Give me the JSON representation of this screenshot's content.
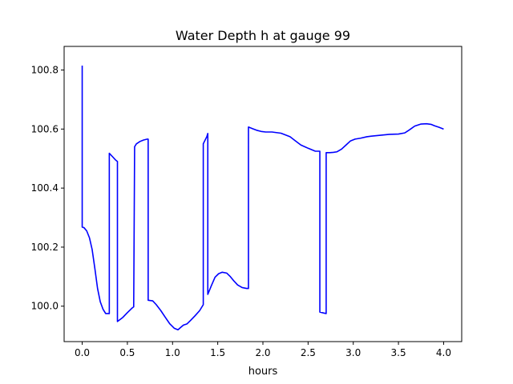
{
  "chart_data": {
    "type": "line",
    "title": "Water Depth h at gauge 99",
    "xlabel": "hours",
    "ylabel": "",
    "xlim": [
      -0.2,
      4.2
    ],
    "ylim": [
      99.88,
      100.88
    ],
    "xticks": [
      0.0,
      0.5,
      1.0,
      1.5,
      2.0,
      2.5,
      3.0,
      3.5,
      4.0
    ],
    "xtick_labels": [
      "0.0",
      "0.5",
      "1.0",
      "1.5",
      "2.0",
      "2.5",
      "3.0",
      "3.5",
      "4.0"
    ],
    "yticks": [
      100.0,
      100.2,
      100.4,
      100.6,
      100.8
    ],
    "ytick_labels": [
      "100.0",
      "100.2",
      "100.4",
      "100.6",
      "100.8"
    ],
    "grid": false,
    "line_color": "#0000ff",
    "series": [
      {
        "x": [
          0.0,
          0.0,
          0.02,
          0.05,
          0.08,
          0.11,
          0.14,
          0.17,
          0.2,
          0.23,
          0.26,
          0.3,
          0.3,
          0.34,
          0.37,
          0.39,
          0.39,
          0.45,
          0.5,
          0.55,
          0.57,
          0.58,
          0.6,
          0.64,
          0.68,
          0.72,
          0.73,
          0.73,
          0.78,
          0.82,
          0.87,
          0.92,
          0.97,
          1.02,
          1.06,
          1.09,
          1.12,
          1.16,
          1.2,
          1.25,
          1.3,
          1.34,
          1.34,
          1.38,
          1.39,
          1.39,
          1.43,
          1.47,
          1.51,
          1.55,
          1.6,
          1.64,
          1.68,
          1.72,
          1.77,
          1.82,
          1.84,
          1.84,
          1.88,
          1.93,
          1.98,
          2.03,
          2.1,
          2.2,
          2.3,
          2.36,
          2.42,
          2.5,
          2.58,
          2.63,
          2.63,
          2.67,
          2.7,
          2.7,
          2.74,
          2.78,
          2.82,
          2.87,
          2.92,
          2.97,
          3.02,
          3.08,
          3.15,
          3.2,
          3.3,
          3.4,
          3.5,
          3.57,
          3.62,
          3.68,
          3.75,
          3.81,
          3.86,
          3.9,
          3.95,
          4.0
        ],
        "y": [
          100.815,
          100.268,
          100.266,
          100.255,
          100.232,
          100.192,
          100.128,
          100.06,
          100.015,
          99.99,
          99.975,
          99.975,
          100.518,
          100.505,
          100.495,
          100.49,
          99.948,
          99.962,
          99.978,
          99.993,
          99.998,
          100.54,
          100.55,
          100.558,
          100.563,
          100.566,
          100.566,
          100.02,
          100.018,
          100.005,
          99.985,
          99.962,
          99.94,
          99.925,
          99.92,
          99.928,
          99.936,
          99.94,
          99.952,
          99.968,
          99.985,
          100.005,
          100.55,
          100.575,
          100.585,
          100.04,
          100.07,
          100.098,
          100.11,
          100.115,
          100.112,
          100.1,
          100.085,
          100.072,
          100.063,
          100.06,
          100.06,
          100.607,
          100.602,
          100.596,
          100.592,
          100.59,
          100.59,
          100.586,
          100.574,
          100.56,
          100.546,
          100.535,
          100.525,
          100.525,
          99.98,
          99.977,
          99.975,
          100.52,
          100.52,
          100.521,
          100.523,
          100.532,
          100.546,
          100.56,
          100.566,
          100.569,
          100.574,
          100.576,
          100.579,
          100.582,
          100.583,
          100.587,
          100.597,
          100.61,
          100.617,
          100.618,
          100.616,
          100.611,
          100.606,
          100.6
        ]
      }
    ]
  }
}
